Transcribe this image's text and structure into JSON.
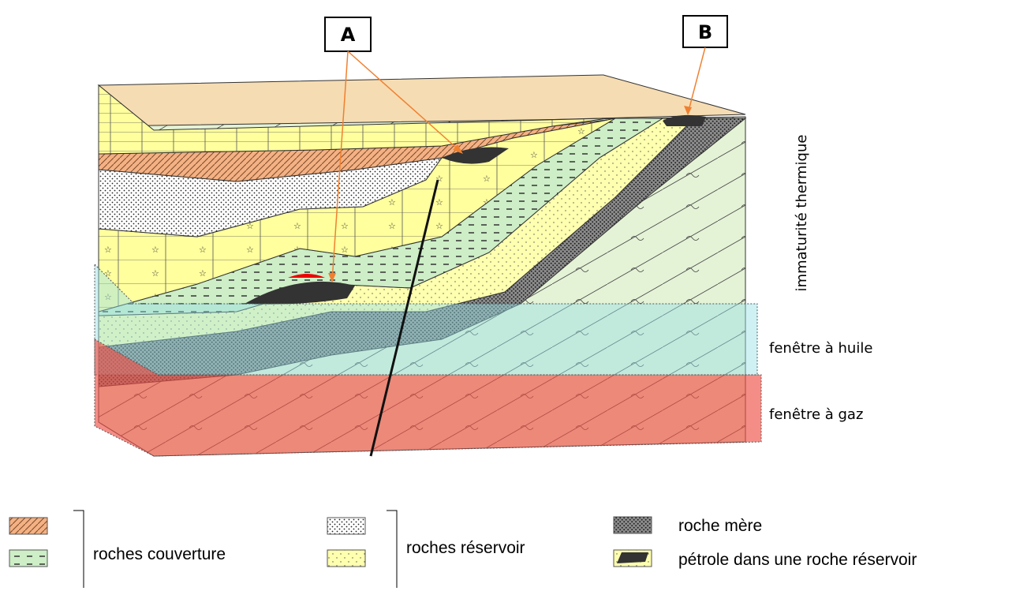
{
  "callouts": {
    "a": "A",
    "b": "B"
  },
  "zones": {
    "immaturity": "immaturité thermique",
    "oil_window": "fenêtre à huile",
    "gas_window": "fenêtre à gaz"
  },
  "legend": {
    "cover_rocks": "roches couverture",
    "reservoir_rocks": "roches réservoir",
    "source_rock": "roche mère",
    "oil_in_reservoir": "pétrole dans une roche réservoir"
  }
}
